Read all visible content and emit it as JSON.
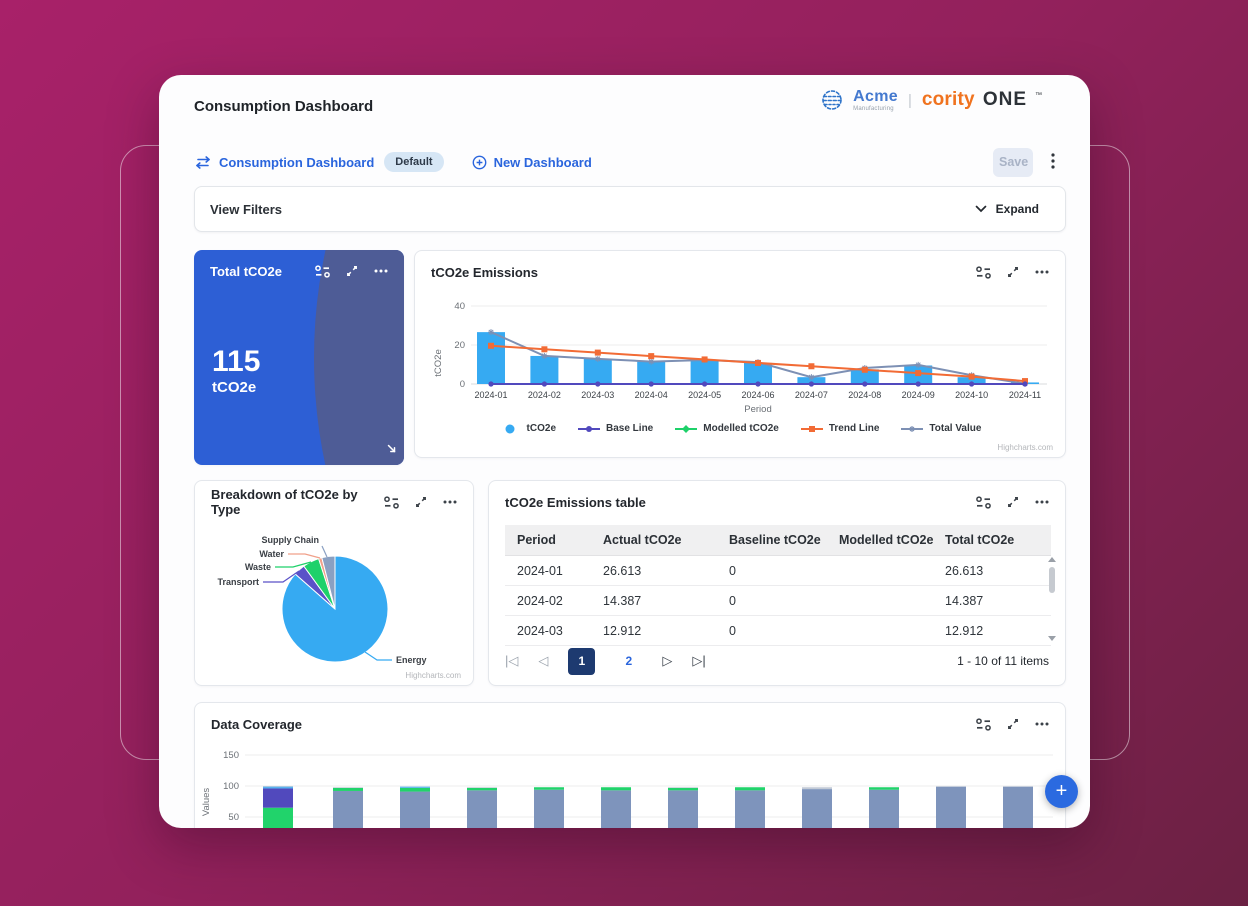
{
  "page": {
    "title": "Consumption Dashboard"
  },
  "brand": {
    "acme": "Acme",
    "acme_sub": "Manufacturing",
    "divider": "|",
    "cority": "cority",
    "one": "ONE",
    "tm": "™"
  },
  "toolbar": {
    "dashboard_link": "Consumption Dashboard",
    "default_badge": "Default",
    "new_dashboard": "New Dashboard",
    "save": "Save"
  },
  "filters": {
    "title": "View Filters",
    "expand": "Expand"
  },
  "kpi": {
    "title": "Total tCO2e",
    "value": "115",
    "unit": "tCO2e"
  },
  "panels": {
    "emissions": {
      "title": "tCO2e Emissions",
      "credit": "Highcharts.com"
    },
    "breakdown": {
      "title": "Breakdown of tCO2e by Type",
      "credit": "Highcharts.com"
    },
    "table": {
      "title": "tCO2e Emissions table"
    },
    "coverage": {
      "title": "Data Coverage"
    }
  },
  "table": {
    "columns": [
      "Period",
      "Actual tCO2e",
      "Baseline tCO2e",
      "Modelled tCO2e",
      "Total tCO2e"
    ],
    "rows": [
      [
        "2024-01",
        "26.613",
        "0",
        "",
        "26.613"
      ],
      [
        "2024-02",
        "14.387",
        "0",
        "",
        "14.387"
      ],
      [
        "2024-03",
        "12.912",
        "0",
        "",
        "12.912"
      ]
    ],
    "pagination": {
      "first": "|◁",
      "prev": "◁",
      "next": "▷",
      "last": "▷|",
      "pages": [
        "1",
        "2"
      ],
      "active_page": "1",
      "summary": "1 - 10 of 11 items"
    }
  },
  "fab": {
    "label": "+"
  },
  "icons": [
    "globe-icon",
    "swap-icon",
    "circle-plus-icon",
    "more-vertical-icon",
    "chevron-down-icon",
    "chart-settings-icon",
    "expand-icon",
    "more-options-icon",
    "resize-handle-icon"
  ],
  "colors": {
    "background_start": "#a82169",
    "background_end": "#6b2143",
    "accent_blue": "#2a65dd",
    "kpi_blue": "#2d5fd5",
    "kpi_overlay": "#4e5c96",
    "bar_blue": "#36aaf2",
    "trend_orange": "#f26b35",
    "base_purple": "#5149bd",
    "modelled_green": "#1ed16a",
    "total_steel": "#7d90b4",
    "active_page_navy": "#1d3a70",
    "brand_orange": "#f0731f"
  },
  "chart_data": [
    {
      "id": "emissions",
      "type": "bar",
      "title": "tCO2e Emissions",
      "categories": [
        "2024-01",
        "2024-02",
        "2024-03",
        "2024-04",
        "2024-05",
        "2024-06",
        "2024-07",
        "2024-08",
        "2024-09",
        "2024-10",
        "2024-11"
      ],
      "xlabel": "Period",
      "ylabel": "tCO2e",
      "yticks": [
        0,
        20,
        40
      ],
      "ylim": [
        0,
        44
      ],
      "grid": true,
      "legend_position": "bottom",
      "series": [
        {
          "name": "tCO2e",
          "kind": "column",
          "color": "#36aaf2",
          "values": [
            26.6,
            14.4,
            12.9,
            11.5,
            12.3,
            10.8,
            3.5,
            7.5,
            9.5,
            3.5,
            0.8
          ]
        },
        {
          "name": "Base Line",
          "kind": "line",
          "marker": "circle",
          "color": "#5149bd",
          "values": [
            0,
            0,
            0,
            0,
            0,
            0,
            0,
            0,
            0,
            0,
            0
          ]
        },
        {
          "name": "Modelled tCO2e",
          "kind": "line",
          "marker": "diamond",
          "color": "#1ed16a",
          "values": []
        },
        {
          "name": "Trend Line",
          "kind": "line",
          "marker": "square",
          "color": "#f26b35",
          "values": [
            19.6,
            17.8,
            16.1,
            14.3,
            12.6,
            10.8,
            9.1,
            7.3,
            5.6,
            3.8,
            1.5
          ]
        },
        {
          "name": "Total Value",
          "kind": "line",
          "marker": "star",
          "color": "#7d90b4",
          "values": [
            26.6,
            14.4,
            12.9,
            11.5,
            12.3,
            11.2,
            3.5,
            8.2,
            9.8,
            4.5,
            0.2
          ]
        }
      ]
    },
    {
      "id": "breakdown",
      "type": "pie",
      "title": "Breakdown of tCO2e by Type",
      "start_angle": "top",
      "direction": "clockwise",
      "slices": [
        {
          "label": "Energy",
          "value": 86.5,
          "color": "#36aaf2"
        },
        {
          "label": "Transport",
          "value": 3.5,
          "color": "#5a52c8"
        },
        {
          "label": "Waste",
          "value": 5.0,
          "color": "#1ed16a"
        },
        {
          "label": "Water",
          "value": 1.0,
          "color": "#f0a08a"
        },
        {
          "label": "Supply Chain",
          "value": 4.0,
          "color": "#8aa0c2"
        }
      ]
    },
    {
      "id": "coverage",
      "type": "stacked-bar",
      "title": "Data Coverage",
      "ylabel": "Values",
      "yticks": [
        50,
        100,
        150
      ],
      "ylim": [
        0,
        165
      ],
      "colors": {
        "steel": "#7e94bc",
        "green": "#21d36b",
        "indigo": "#5149bd",
        "lightblue": "#58b2ef",
        "gray": "#c2cad6"
      },
      "bars": [
        {
          "segments": [
            {
              "color": "green",
              "value": 65
            },
            {
              "color": "indigo",
              "value": 31
            },
            {
              "color": "lightblue",
              "value": 3
            },
            {
              "color": "gray",
              "value": 1
            }
          ]
        },
        {
          "segments": [
            {
              "color": "steel",
              "value": 92
            },
            {
              "color": "green",
              "value": 5
            },
            {
              "color": "gray",
              "value": 1
            }
          ]
        },
        {
          "segments": [
            {
              "color": "steel",
              "value": 91
            },
            {
              "color": "green",
              "value": 6
            },
            {
              "color": "lightblue",
              "value": 2
            }
          ]
        },
        {
          "segments": [
            {
              "color": "steel",
              "value": 93
            },
            {
              "color": "green",
              "value": 4
            },
            {
              "color": "gray",
              "value": 1
            }
          ]
        },
        {
          "segments": [
            {
              "color": "steel",
              "value": 94
            },
            {
              "color": "green",
              "value": 4
            }
          ]
        },
        {
          "segments": [
            {
              "color": "steel",
              "value": 93
            },
            {
              "color": "green",
              "value": 5
            }
          ]
        },
        {
          "segments": [
            {
              "color": "steel",
              "value": 93
            },
            {
              "color": "green",
              "value": 4
            },
            {
              "color": "gray",
              "value": 1
            }
          ]
        },
        {
          "segments": [
            {
              "color": "steel",
              "value": 93
            },
            {
              "color": "green",
              "value": 5
            }
          ]
        },
        {
          "segments": [
            {
              "color": "steel",
              "value": 95
            },
            {
              "color": "gray",
              "value": 3
            }
          ]
        },
        {
          "segments": [
            {
              "color": "steel",
              "value": 94
            },
            {
              "color": "green",
              "value": 4
            }
          ]
        },
        {
          "segments": [
            {
              "color": "steel",
              "value": 99
            }
          ]
        },
        {
          "segments": [
            {
              "color": "steel",
              "value": 99
            }
          ]
        }
      ]
    }
  ]
}
